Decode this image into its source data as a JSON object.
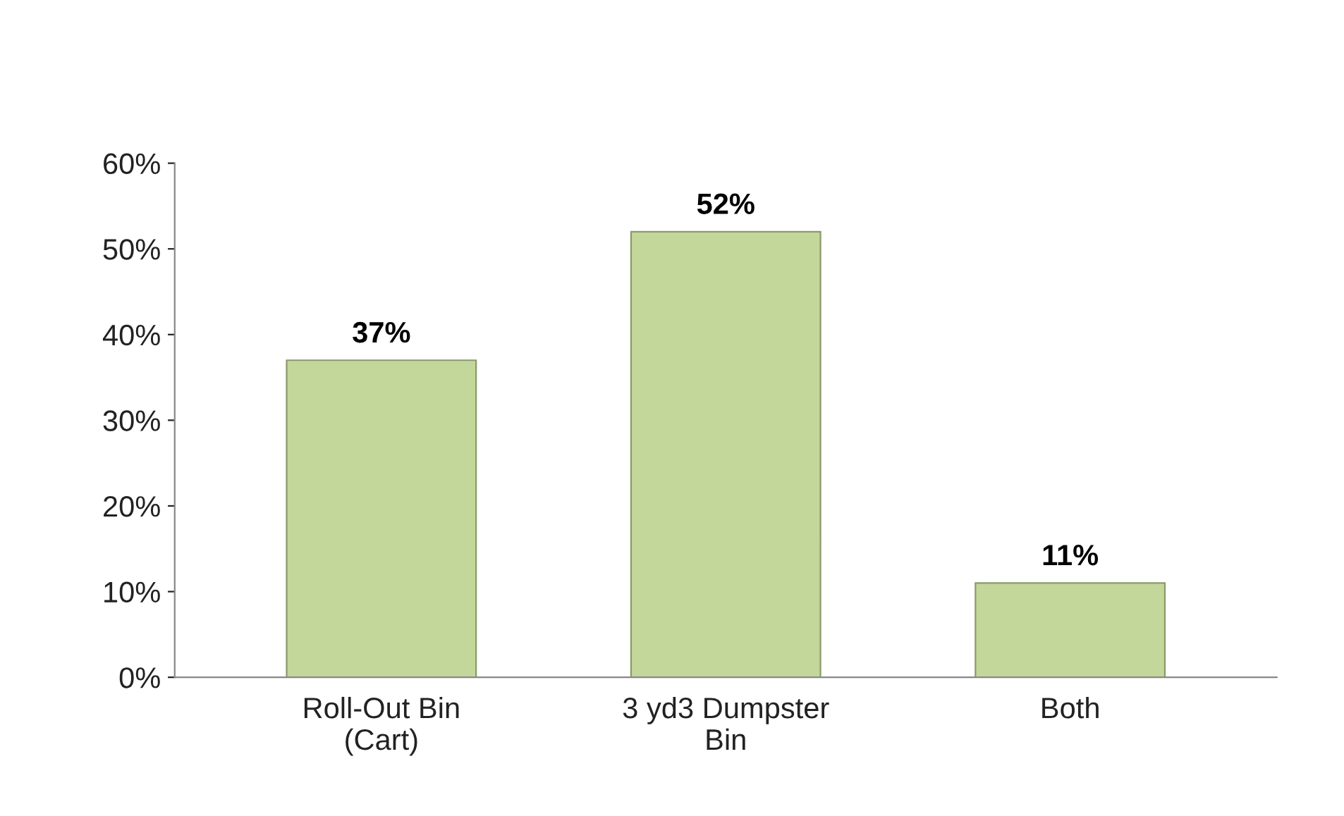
{
  "chart_data": {
    "type": "bar",
    "categories": [
      "Roll-Out Bin\n(Cart)",
      "3 yd3 Dumpster\nBin",
      "Both"
    ],
    "values": [
      37,
      52,
      11
    ],
    "color": "#c4d79b",
    "value_labels": [
      "37%",
      "52%",
      "11%"
    ],
    "ylim": [
      0,
      60
    ],
    "yticks": [
      {
        "value": 0,
        "label": "0%"
      },
      {
        "value": 10,
        "label": "10%"
      },
      {
        "value": 20,
        "label": "20%"
      },
      {
        "value": 30,
        "label": "30%"
      },
      {
        "value": 40,
        "label": "40%"
      },
      {
        "value": 50,
        "label": "50%"
      },
      {
        "value": 60,
        "label": "60%"
      }
    ],
    "grid": false
  }
}
